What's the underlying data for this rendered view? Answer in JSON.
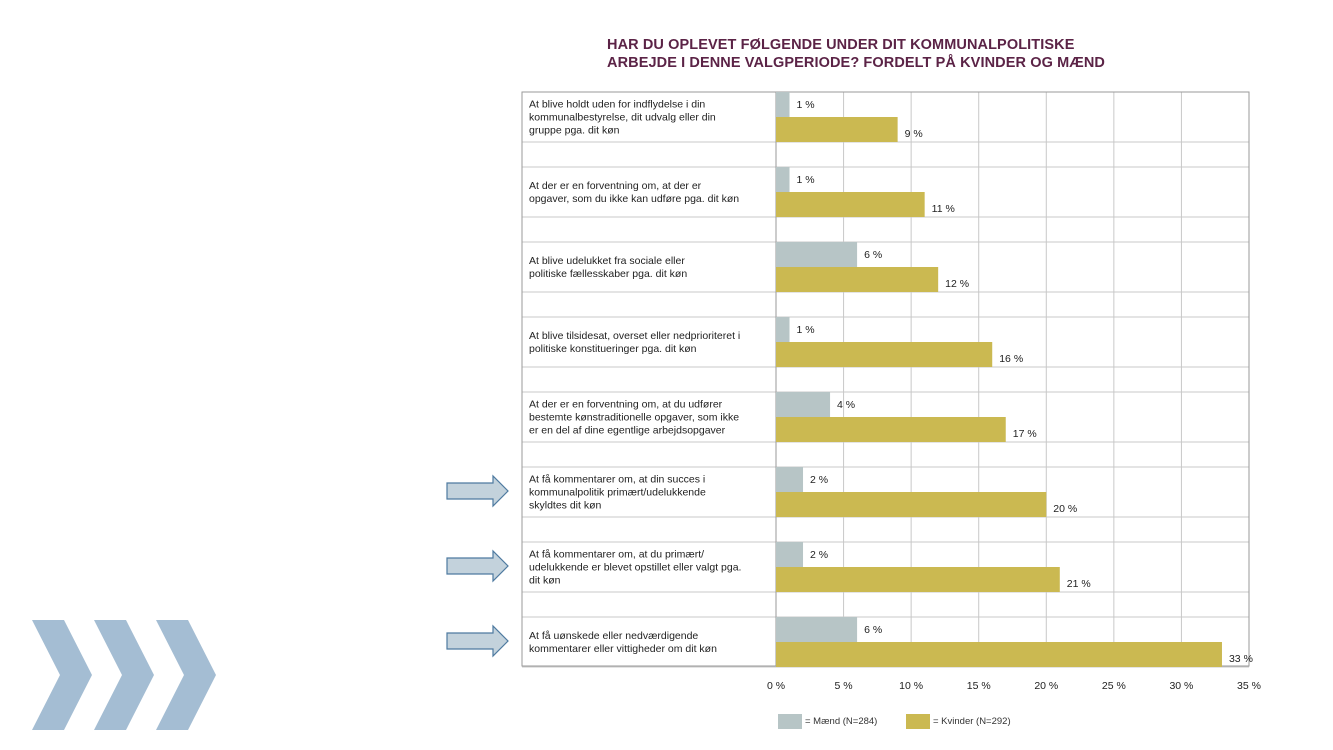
{
  "chart_data": {
    "type": "bar",
    "orientation": "horizontal",
    "title": [
      "HAR DU OPLEVET FØLGENDE UNDER DIT KOMMUNALPOLITISKE",
      "ARBEJDE I DENNE VALGPERIODE? FORDELT PÅ KVINDER OG MÆND"
    ],
    "categories": [
      [
        "At blive holdt uden for indflydelse i din",
        "kommunalbestyrelse, dit udvalg eller din",
        "gruppe pga. dit køn"
      ],
      [
        "At der er en forventning om, at der er",
        "opgaver, som du ikke kan udføre pga. dit køn"
      ],
      [
        "At blive udelukket fra sociale eller",
        "politiske fællesskaber pga. dit køn"
      ],
      [
        "At blive tilsidesat, overset eller nedprioriteret i",
        "politiske konstitueringer pga. dit køn"
      ],
      [
        "At der er en forventning om, at du udfører",
        "bestemte kønstraditionelle opgaver, som ikke",
        "er en del af dine egentlige arbejdsopgaver"
      ],
      [
        "At få kommentarer om, at din succes i",
        "kommunalpolitik primært/udelukkende",
        "skyldtes dit køn"
      ],
      [
        "At få kommentarer om, at du primært/",
        "udelukkende er blevet opstillet eller valgt pga.",
        "dit køn"
      ],
      [
        "At få uønskede eller nedværdigende",
        "kommentarer eller vittigheder om dit køn"
      ]
    ],
    "series": [
      {
        "name": "= Mænd (N=284)",
        "color": "#b7c5c6",
        "values": [
          1,
          1,
          6,
          1,
          4,
          2,
          2,
          6
        ],
        "labels": [
          "1 %",
          "1 %",
          "6 %",
          "1 %",
          "4 %",
          "2 %",
          "2 %",
          "6 %"
        ]
      },
      {
        "name": "= Kvinder (N=292)",
        "color": "#cbb951",
        "values": [
          9,
          11,
          12,
          16,
          17,
          20,
          21,
          33
        ],
        "labels": [
          "9 %",
          "11 %",
          "12 %",
          "16 %",
          "17 %",
          "20 %",
          "21 %",
          "33 %"
        ]
      }
    ],
    "xlim": [
      0,
      35
    ],
    "xticks": [
      0,
      5,
      10,
      15,
      20,
      25,
      30,
      35
    ],
    "xtick_labels": [
      "0 %",
      "5 %",
      "10 %",
      "15 %",
      "20 %",
      "25 %",
      "30 %",
      "35 %"
    ],
    "grid": true,
    "legend": "bottom",
    "highlighted_rows": [
      5,
      6,
      7
    ]
  },
  "colors": {
    "title": "#5b2346",
    "arrow_fill": "#c3d2dc",
    "arrow_stroke": "#4e7aa0",
    "chevron": "#a4bdd3",
    "grid": "#c8c8c8",
    "frame": "#9a9a9a"
  },
  "icons": {
    "arrow": "right-arrow-icon",
    "chevron": "chevron-right-icon"
  }
}
